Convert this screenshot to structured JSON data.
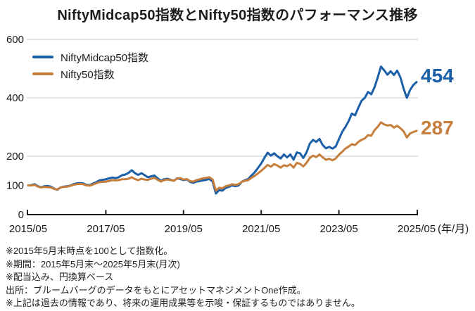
{
  "chart_data": {
    "type": "line",
    "title": "NiftyMidcap50指数とNifty50指数のパフォーマンス推移",
    "x_start": "2015/05",
    "x_end": "2025/05",
    "frequency": "月次",
    "x_tick_labels": [
      "2015/05",
      "2017/05",
      "2019/05",
      "2021/05",
      "2023/05",
      "2025/05"
    ],
    "x_tick_months": [
      0,
      24,
      48,
      72,
      96,
      120
    ],
    "x_unit_label": "(年/月)",
    "y_ticks": [
      0,
      100,
      200,
      400,
      600
    ],
    "gridlines": [
      200,
      400,
      600
    ],
    "ylim": [
      0,
      600
    ],
    "grid_color": "#c9c9c9",
    "axis_color": "#1a1a1a",
    "series": [
      {
        "name": "NiftyMidcap50指数",
        "color": "#1a5fa8",
        "end_label": "454",
        "values": [
          100,
          101,
          104,
          97,
          94,
          97,
          98,
          96,
          89,
          85,
          93,
          96,
          97,
          99,
          104,
          107,
          108,
          107,
          102,
          101,
          106,
          111,
          117,
          119,
          121,
          124,
          127,
          125,
          128,
          135,
          137,
          143,
          152,
          142,
          136,
          142,
          135,
          128,
          131,
          134,
          124,
          116,
          121,
          123,
          119,
          116,
          124,
          122,
          118,
          121,
          112,
          109,
          113,
          115,
          117,
          119,
          122,
          113,
          72,
          84,
          82,
          91,
          95,
          100,
          97,
          100,
          112,
          118,
          122,
          134,
          145,
          160,
          175,
          195,
          212,
          202,
          210,
          200,
          192,
          206,
          196,
          206,
          188,
          213,
          210,
          194,
          213,
          243,
          256,
          249,
          259,
          238,
          227,
          232,
          226,
          233,
          258,
          283,
          300,
          320,
          346,
          340,
          366,
          390,
          400,
          420,
          412,
          436,
          470,
          507,
          494,
          479,
          491,
          478,
          493,
          470,
          431,
          400,
          427,
          444,
          454
        ]
      },
      {
        "name": "Nifty50指数",
        "color": "#c57e3c",
        "end_label": "287",
        "values": [
          100,
          100,
          102,
          96,
          93,
          95,
          94,
          93,
          88,
          86,
          93,
          95,
          96,
          98,
          102,
          104,
          105,
          104,
          100,
          99,
          103,
          107,
          111,
          112,
          113,
          115,
          118,
          117,
          118,
          121,
          121,
          123,
          128,
          122,
          118,
          123,
          120,
          119,
          123,
          126,
          119,
          113,
          118,
          120,
          118,
          116,
          123,
          125,
          120,
          122,
          115,
          113,
          118,
          121,
          124,
          126,
          128,
          120,
          82,
          92,
          90,
          97,
          100,
          104,
          102,
          104,
          112,
          116,
          118,
          126,
          133,
          141,
          150,
          160,
          170,
          164,
          173,
          168,
          161,
          169,
          166,
          172,
          161,
          177,
          174,
          165,
          177,
          194,
          202,
          197,
          206,
          196,
          188,
          191,
          186,
          192,
          205,
          215,
          226,
          233,
          241,
          238,
          249,
          256,
          261,
          272,
          270,
          289,
          301,
          316,
          309,
          305,
          307,
          298,
          304,
          296,
          285,
          264,
          278,
          283,
          287
        ]
      }
    ]
  },
  "footnotes": [
    "※2015年5月末時点を100として指数化。",
    "※期間：2015年5月末～2025年5月末(月次)",
    "※配当込み、円換算ベース",
    "出所：ブルームバーグのデータをもとにアセットマネジメントOne作成。",
    "※上記は過去の情報であり、将来の運用成果等を示唆・保証するものではありません。"
  ]
}
